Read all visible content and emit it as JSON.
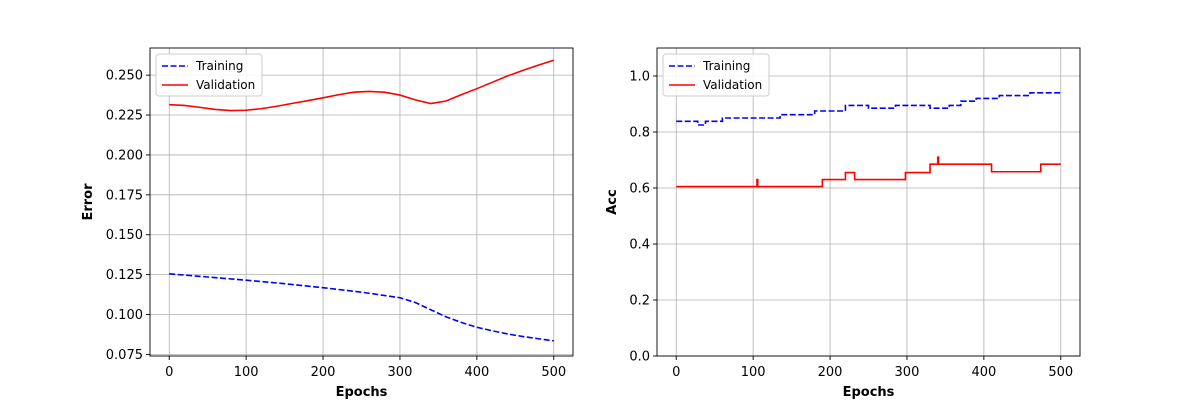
{
  "chart_data": [
    {
      "type": "line",
      "xlabel": "Epochs",
      "ylabel": "Error",
      "xlim": [
        -25,
        525
      ],
      "ylim": [
        0.074,
        0.267
      ],
      "xticks": [
        0,
        100,
        200,
        300,
        400,
        500
      ],
      "yticks": [
        0.075,
        0.1,
        0.125,
        0.15,
        0.175,
        0.2,
        0.225,
        0.25
      ],
      "xtick_labels": [
        "0",
        "100",
        "200",
        "300",
        "400",
        "500"
      ],
      "ytick_labels": [
        "0.075",
        "0.100",
        "0.125",
        "0.150",
        "0.175",
        "0.200",
        "0.225",
        "0.250"
      ],
      "grid": true,
      "legend_position": "top-left",
      "series": [
        {
          "name": "Training",
          "color": "#0000ff",
          "dash": "dashed",
          "x": [
            0,
            50,
            100,
            150,
            200,
            250,
            300,
            320,
            340,
            360,
            380,
            400,
            420,
            440,
            460,
            480,
            500
          ],
          "y": [
            0.1255,
            0.1235,
            0.1215,
            0.1193,
            0.1168,
            0.114,
            0.1105,
            0.1075,
            0.103,
            0.0985,
            0.095,
            0.092,
            0.0898,
            0.0878,
            0.0862,
            0.0848,
            0.0835
          ]
        },
        {
          "name": "Validation",
          "color": "#ff0000",
          "dash": "solid",
          "x": [
            0,
            20,
            40,
            60,
            80,
            100,
            120,
            140,
            160,
            180,
            200,
            220,
            240,
            260,
            280,
            300,
            320,
            340,
            360,
            380,
            400,
            420,
            440,
            460,
            480,
            500
          ],
          "y": [
            0.2315,
            0.231,
            0.2298,
            0.2285,
            0.2278,
            0.228,
            0.229,
            0.2305,
            0.2323,
            0.234,
            0.2358,
            0.2377,
            0.2393,
            0.2398,
            0.2393,
            0.2375,
            0.2345,
            0.2322,
            0.2338,
            0.2378,
            0.2415,
            0.2455,
            0.2495,
            0.253,
            0.2563,
            0.2593
          ]
        }
      ]
    },
    {
      "type": "line",
      "xlabel": "Epochs",
      "ylabel": "Acc",
      "xlim": [
        -25,
        525
      ],
      "ylim": [
        0.0,
        1.1
      ],
      "xticks": [
        0,
        100,
        200,
        300,
        400,
        500
      ],
      "yticks": [
        0.0,
        0.2,
        0.4,
        0.6,
        0.8,
        1.0
      ],
      "xtick_labels": [
        "0",
        "100",
        "200",
        "300",
        "400",
        "500"
      ],
      "ytick_labels": [
        "0.0",
        "0.2",
        "0.4",
        "0.6",
        "0.8",
        "1.0"
      ],
      "grid": true,
      "legend_position": "top-left",
      "series": [
        {
          "name": "Training",
          "color": "#0000ff",
          "dash": "dashed",
          "step": true,
          "x": [
            0,
            28,
            38,
            60,
            135,
            180,
            220,
            250,
            285,
            315,
            330,
            355,
            370,
            390,
            420,
            460,
            500
          ],
          "y": [
            0.838,
            0.825,
            0.838,
            0.85,
            0.862,
            0.875,
            0.895,
            0.885,
            0.895,
            0.895,
            0.885,
            0.895,
            0.91,
            0.92,
            0.93,
            0.94,
            0.94
          ]
        },
        {
          "name": "Validation",
          "color": "#ff0000",
          "dash": "solid",
          "step": true,
          "x": [
            0,
            104,
            105,
            106,
            190,
            220,
            232,
            298,
            330,
            339,
            340,
            341,
            410,
            474,
            500
          ],
          "y": [
            0.605,
            0.605,
            0.63,
            0.605,
            0.63,
            0.655,
            0.63,
            0.655,
            0.685,
            0.685,
            0.71,
            0.685,
            0.658,
            0.685,
            0.685
          ]
        }
      ]
    }
  ]
}
